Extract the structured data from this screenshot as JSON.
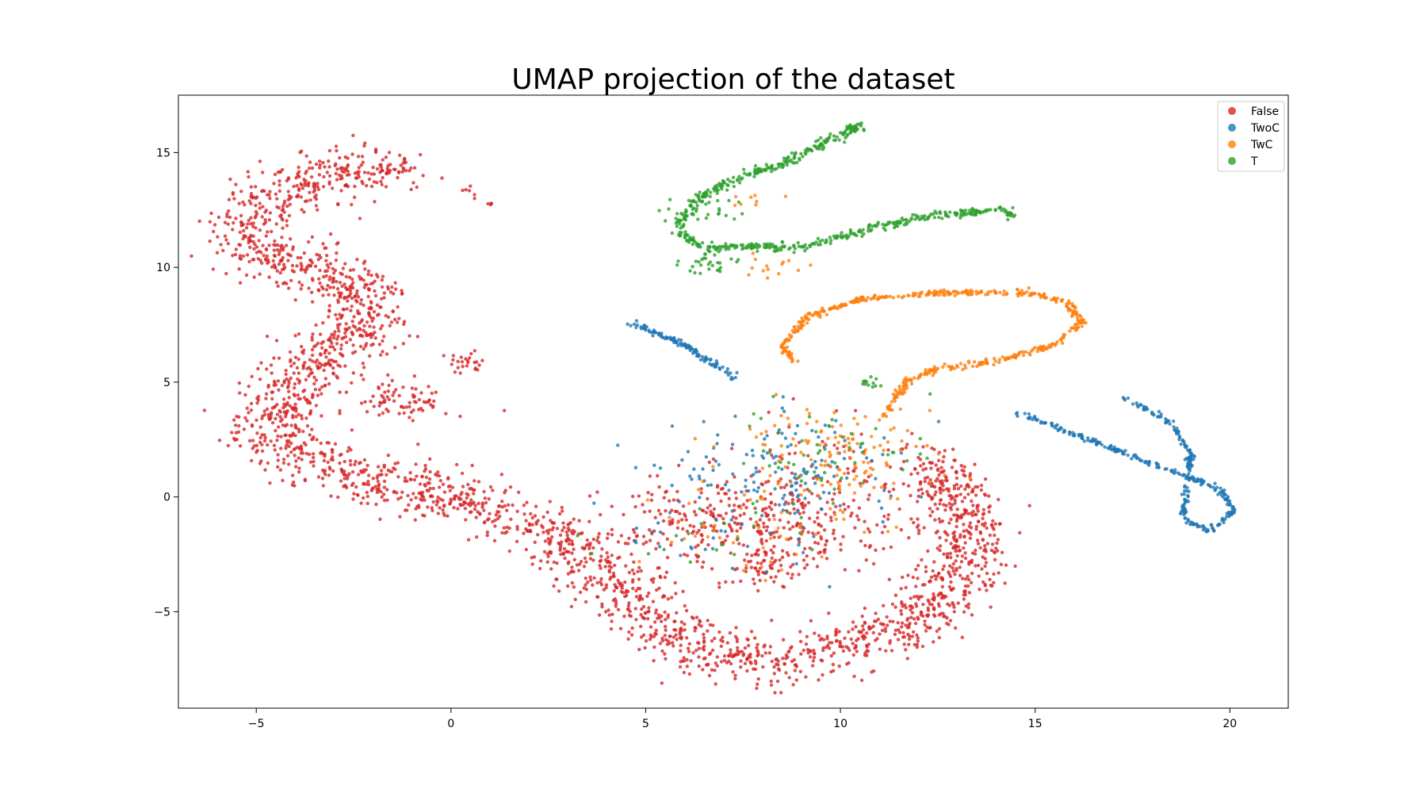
{
  "chart_data": {
    "type": "scatter",
    "title": "UMAP projection of the dataset",
    "xlabel": "",
    "ylabel": "",
    "xlim": [
      -7,
      21.5
    ],
    "ylim": [
      -9.2,
      17.5
    ],
    "x_ticks": [
      -5,
      0,
      5,
      10,
      15,
      20
    ],
    "y_ticks": [
      -5,
      0,
      5,
      10,
      15
    ],
    "x_tick_labels": [
      "−5",
      "0",
      "5",
      "10",
      "15",
      "20"
    ],
    "y_tick_labels": [
      "−5",
      "0",
      "5",
      "10",
      "15"
    ],
    "grid": false,
    "legend_position": "top-right",
    "series": [
      {
        "name": "False",
        "color": "#d62728",
        "description": "large main manifold curving from upper-left to bottom and right",
        "path": [
          [
            -1.2,
            14.2
          ],
          [
            -2.5,
            14.2
          ],
          [
            -4,
            13.6
          ],
          [
            -5.3,
            12.2
          ],
          [
            -5.2,
            10.9
          ],
          [
            -3.6,
            10
          ],
          [
            -2.2,
            9
          ],
          [
            -2.4,
            7
          ],
          [
            -3.8,
            5.5
          ],
          [
            -4.7,
            3
          ],
          [
            -3.5,
            1.4
          ],
          [
            -1.5,
            0.5
          ],
          [
            0.8,
            -0.4
          ],
          [
            2.8,
            -1.6
          ],
          [
            4.5,
            -4.2
          ],
          [
            6.2,
            -6.6
          ],
          [
            8,
            -7.2
          ],
          [
            10.2,
            -6.6
          ],
          [
            12.2,
            -5.1
          ],
          [
            13.2,
            -2.8
          ],
          [
            13.1,
            -0.2
          ],
          [
            12.2,
            1.7
          ]
        ],
        "spread": 0.55,
        "count": 2600,
        "blobs": [
          {
            "center": [
              0.3,
              5.8
            ],
            "spread": 0.3,
            "count": 25
          },
          {
            "center": [
              -1.2,
              4.2
            ],
            "spread": 0.6,
            "count": 80
          },
          {
            "center": [
              6.5,
              -1.2
            ],
            "spread": 1.3,
            "count": 220
          },
          {
            "center": [
              9.5,
              -1.0
            ],
            "spread": 1.2,
            "count": 160
          },
          {
            "center": [
              8.2,
              -3.0
            ],
            "spread": 0.5,
            "count": 60
          },
          {
            "center": [
              0.5,
              13.3
            ],
            "spread": 0.15,
            "count": 6
          },
          {
            "center": [
              1.0,
              12.8
            ],
            "spread": 0.1,
            "count": 4
          },
          {
            "center": [
              9.8,
              2.0
            ],
            "spread": 1.2,
            "count": 50
          }
        ]
      },
      {
        "name": "TwoC",
        "color": "#1f77b4",
        "description": "separate line segments on the right and middle",
        "segments": [
          {
            "path": [
              [
                4.6,
                7.6
              ],
              [
                6.0,
                6.6
              ],
              [
                7.3,
                5.2
              ]
            ],
            "spread": 0.06,
            "count": 120
          },
          {
            "path": [
              [
                14.5,
                3.7
              ],
              [
                17,
                2.1
              ],
              [
                19,
                0.8
              ],
              [
                19.8,
                0.3
              ],
              [
                20.1,
                -0.6
              ],
              [
                19.5,
                -1.5
              ],
              [
                18.8,
                -1.0
              ],
              [
                18.9,
                0.5
              ],
              [
                19.0,
                2.0
              ],
              [
                18.4,
                3.3
              ],
              [
                17.2,
                4.4
              ]
            ],
            "spread": 0.05,
            "count": 380
          }
        ],
        "blobs": [
          {
            "center": [
              8.8,
              1.2
            ],
            "spread": 1.5,
            "count": 120
          },
          {
            "center": [
              7.0,
              -1.0
            ],
            "spread": 1.5,
            "count": 50
          }
        ]
      },
      {
        "name": "TwC",
        "color": "#ff7f0e",
        "description": "loop curve across center-right",
        "segments": [
          {
            "path": [
              [
                8.8,
                5.9
              ],
              [
                8.5,
                6.6
              ],
              [
                9.2,
                7.9
              ],
              [
                10.5,
                8.6
              ],
              [
                12.5,
                8.9
              ],
              [
                14.8,
                8.9
              ],
              [
                15.8,
                8.5
              ],
              [
                16.2,
                7.6
              ],
              [
                15.5,
                6.6
              ],
              [
                14,
                5.9
              ],
              [
                12.5,
                5.6
              ],
              [
                11.7,
                5.0
              ],
              [
                11.4,
                4.2
              ],
              [
                11.1,
                3.5
              ]
            ],
            "spread": 0.06,
            "count": 520
          }
        ],
        "blobs": [
          {
            "center": [
              9.8,
              2.0
            ],
            "spread": 1.3,
            "count": 130
          },
          {
            "center": [
              7.5,
              -1.2
            ],
            "spread": 1.5,
            "count": 50
          },
          {
            "center": [
              7.6,
              12.8
            ],
            "spread": 0.3,
            "count": 8
          },
          {
            "center": [
              8.2,
              10.1
            ],
            "spread": 0.4,
            "count": 14
          }
        ]
      },
      {
        "name": "T",
        "color": "#2ca02c",
        "description": "upper curve with hook on the left",
        "segments": [
          {
            "path": [
              [
                10.6,
                16.3
              ],
              [
                9.6,
                15.4
              ],
              [
                8.5,
                14.5
              ],
              [
                7.2,
                13.8
              ],
              [
                6.2,
                12.8
              ],
              [
                5.8,
                11.6
              ],
              [
                6.4,
                10.9
              ],
              [
                8.0,
                10.9
              ],
              [
                9.0,
                10.9
              ],
              [
                10.8,
                11.7
              ],
              [
                12.5,
                12.3
              ],
              [
                14.2,
                12.5
              ],
              [
                14.5,
                12.2
              ]
            ],
            "spread": 0.09,
            "count": 560
          }
        ],
        "blobs": [
          {
            "center": [
              6.6,
              10.2
            ],
            "spread": 0.35,
            "count": 30
          },
          {
            "center": [
              6.5,
              12.5
            ],
            "spread": 0.5,
            "count": 30
          },
          {
            "center": [
              10.8,
              5.0
            ],
            "spread": 0.15,
            "count": 12
          },
          {
            "center": [
              9.8,
              2.0
            ],
            "spread": 1.3,
            "count": 50
          },
          {
            "center": [
              7.0,
              -0.8
            ],
            "spread": 1.6,
            "count": 25
          }
        ]
      }
    ]
  }
}
